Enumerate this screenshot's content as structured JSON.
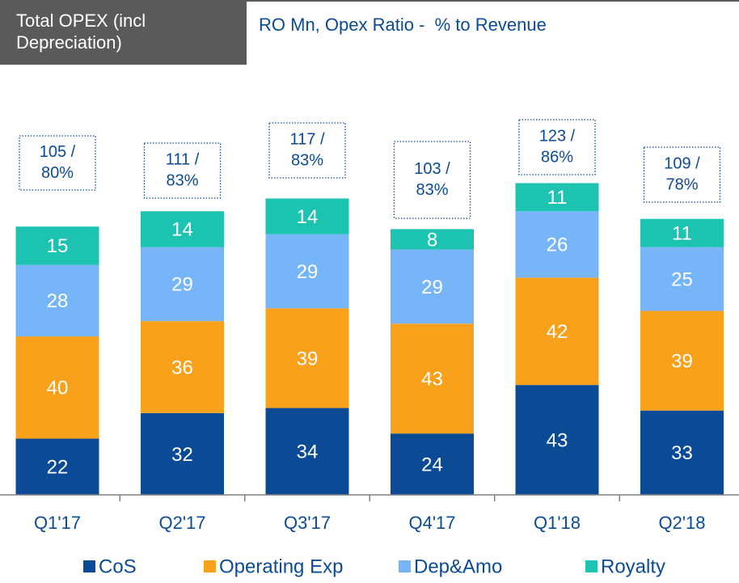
{
  "chart_data": {
    "type": "stacked_bar",
    "title": "Total OPEX (incl Depreciation)",
    "subtitle": "RO Mn, Opex Ratio -  % to Revenue",
    "categories": [
      "Q1'17",
      "Q2'17",
      "Q3'17",
      "Q4'17",
      "Q1'18",
      "Q2'18"
    ],
    "series": [
      {
        "name": "CoS",
        "color": "#0b4b96",
        "values": [
          22,
          32,
          34,
          24,
          43,
          33
        ]
      },
      {
        "name": "Operating Exp",
        "color": "#f9a11b",
        "values": [
          40,
          36,
          39,
          43,
          42,
          39
        ]
      },
      {
        "name": "Dep&Amo",
        "color": "#76b6f8",
        "values": [
          28,
          29,
          29,
          29,
          26,
          25
        ]
      },
      {
        "name": "Royalty",
        "color": "#1cc3b1",
        "values": [
          15,
          14,
          14,
          8,
          11,
          11
        ]
      }
    ],
    "annotations": [
      [
        "105 /",
        "80%"
      ],
      [
        "111 /",
        "83%"
      ],
      [
        "117 /",
        "83%"
      ],
      [
        "103 /",
        "83%"
      ],
      [
        "123 /",
        "86%"
      ],
      [
        "109 /",
        "78%"
      ]
    ],
    "legend": "bottom"
  }
}
